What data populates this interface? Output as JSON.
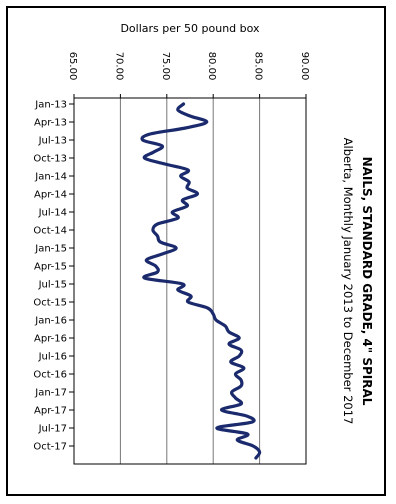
{
  "chart_data": {
    "type": "line",
    "orientation": "rotated",
    "title": "NAILS, STANDARD GRADE, 4\" SPIRAL",
    "subtitle": "Alberta, Monthly January 2013 to December 2017",
    "value_axis_label": "Dollars per 50 pound box",
    "value_ticks": [
      "65.00",
      "70.00",
      "75.00",
      "80.00",
      "85.00",
      "90.00"
    ],
    "ylim": [
      65,
      90
    ],
    "grid": true,
    "time_ticks": [
      "Jan-13",
      "Apr-13",
      "Jul-13",
      "Oct-13",
      "Jan-14",
      "Apr-14",
      "Jul-14",
      "Oct-14",
      "Jan-15",
      "Apr-15",
      "Jul-15",
      "Oct-15",
      "Jan-16",
      "Apr-16",
      "Jul-16",
      "Oct-16",
      "Jan-17",
      "Apr-17",
      "Jul-17",
      "Oct-17"
    ],
    "line_color": "#1a2a6c",
    "series": [
      {
        "x": [
          "Jan-13",
          "Feb-13",
          "Mar-13",
          "Apr-13",
          "May-13",
          "Jun-13",
          "Jul-13",
          "Aug-13",
          "Sep-13",
          "Oct-13",
          "Nov-13",
          "Dec-13",
          "Jan-14",
          "Feb-14",
          "Mar-14",
          "Apr-14",
          "May-14",
          "Jun-14",
          "Jul-14",
          "Aug-14",
          "Sep-14",
          "Oct-14",
          "Nov-14",
          "Dec-14",
          "Jan-15",
          "Feb-15",
          "Mar-15",
          "Apr-15",
          "May-15",
          "Jun-15",
          "Jul-15",
          "Aug-15",
          "Sep-15",
          "Oct-15",
          "Nov-15",
          "Dec-15",
          "Jan-16",
          "Feb-16",
          "Mar-16",
          "Apr-16",
          "May-16",
          "Jun-16",
          "Jul-16",
          "Aug-16",
          "Sep-16",
          "Oct-16",
          "Nov-16",
          "Dec-16",
          "Jan-17",
          "Feb-17",
          "Mar-17",
          "Apr-17",
          "May-17",
          "Jun-17",
          "Jul-17",
          "Aug-17",
          "Sep-17",
          "Oct-17",
          "Nov-17",
          "Dec-17"
        ],
        "values": [
          76.8,
          76.2,
          77.5,
          79.3,
          77.0,
          73.2,
          72.4,
          74.5,
          73.6,
          72.6,
          74.8,
          77.3,
          76.5,
          77.4,
          77.2,
          78.3,
          76.7,
          77.2,
          75.6,
          76.2,
          74.0,
          73.5,
          74.0,
          74.3,
          76.0,
          74.5,
          72.8,
          73.8,
          74.0,
          72.6,
          76.7,
          76.2,
          77.6,
          77.3,
          79.4,
          80.0,
          80.3,
          81.3,
          81.7,
          82.8,
          81.7,
          83.0,
          82.8,
          81.9,
          83.3,
          82.4,
          83.0,
          83.0,
          82.0,
          82.4,
          83.0,
          80.9,
          83.6,
          84.2,
          80.4,
          83.7,
          82.6,
          84.3,
          85.0,
          84.6
        ]
      }
    ]
  }
}
